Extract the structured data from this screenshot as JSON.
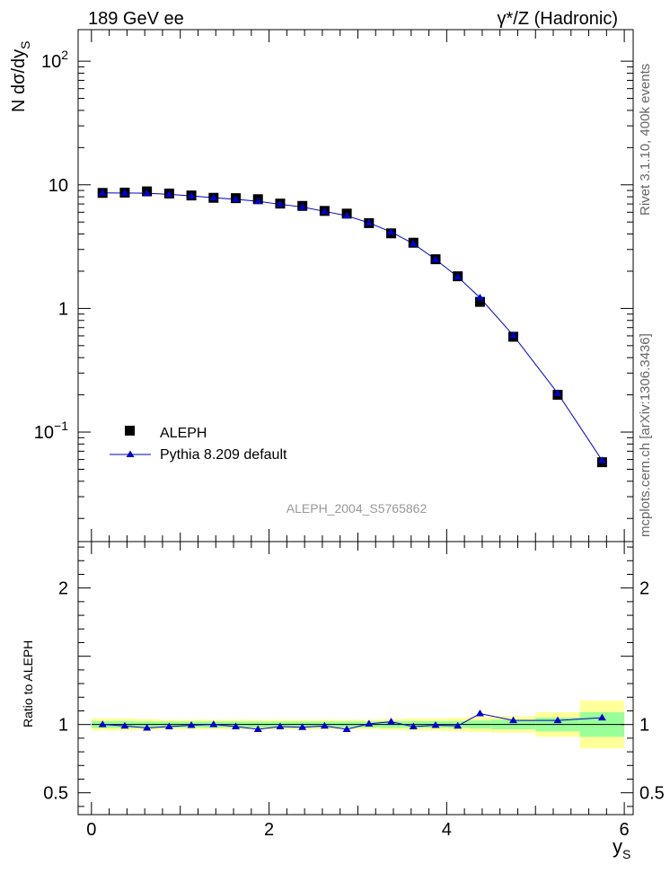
{
  "header": {
    "left_title": "189 GeV ee",
    "right_title": "γ*/Z (Hadronic)"
  },
  "side_labels": {
    "rivet": "Rivet 3.1.10,  400k events",
    "mcplots": "mcplots.cern.ch [arXiv:1306.3436]"
  },
  "watermark": "ALEPH_2004_S5765862",
  "colors": {
    "data": "#000000",
    "mc": "#0000cc",
    "band_inner": "#99ff99",
    "band_outer": "#ffff99"
  },
  "chart_data": [
    {
      "type": "scatter",
      "panel": "main",
      "title": "",
      "xlabel": "y",
      "xlabel_sub": "S",
      "ylabel_main": "N dσ/dy",
      "ylabel_sub": "S",
      "yscale": "log",
      "xlim": [
        -0.15,
        6.1
      ],
      "ylim": [
        0.013,
        180
      ],
      "yticks": [
        {
          "value": 100,
          "base": "10",
          "exp": "2"
        },
        {
          "value": 10,
          "base": "10",
          "exp": ""
        },
        {
          "value": 1,
          "base": "1",
          "exp": ""
        },
        {
          "value": 0.1,
          "base": "10",
          "exp": "−1"
        }
      ],
      "legend": {
        "position": "bottom-left",
        "entries": [
          {
            "label": "ALEPH",
            "marker": "square"
          },
          {
            "label": "Pythia 8.209 default",
            "marker": "triangle-line"
          }
        ]
      },
      "series": [
        {
          "name": "ALEPH",
          "x": [
            0.125,
            0.375,
            0.625,
            0.875,
            1.125,
            1.375,
            1.625,
            1.875,
            2.125,
            2.375,
            2.625,
            2.875,
            3.125,
            3.375,
            3.625,
            3.875,
            4.125,
            4.375,
            4.75,
            5.25,
            5.75
          ],
          "values": [
            8.6,
            8.65,
            8.85,
            8.5,
            8.2,
            7.85,
            7.8,
            7.65,
            7.05,
            6.75,
            6.15,
            5.85,
            4.9,
            4.05,
            3.4,
            2.5,
            1.82,
            1.13,
            0.59,
            0.2,
            0.057
          ]
        },
        {
          "name": "Pythia 8.209 default",
          "x": [
            0.125,
            0.375,
            0.625,
            0.875,
            1.125,
            1.375,
            1.625,
            1.875,
            2.125,
            2.375,
            2.625,
            2.875,
            3.125,
            3.375,
            3.625,
            3.875,
            4.125,
            4.375,
            4.75,
            5.25,
            5.75
          ],
          "values": [
            8.6,
            8.58,
            8.55,
            8.38,
            8.13,
            7.86,
            7.64,
            7.35,
            6.96,
            6.61,
            6.1,
            5.62,
            4.93,
            4.15,
            3.34,
            2.49,
            1.8,
            1.22,
            0.605,
            0.206,
            0.059
          ]
        }
      ]
    },
    {
      "type": "scatter",
      "panel": "ratio",
      "ylabel": "Ratio to ALEPH",
      "xlabel": "y",
      "xlabel_sub": "S",
      "xlim": [
        -0.15,
        6.1
      ],
      "ylim": [
        0.34,
        2.34
      ],
      "yticks": [
        0.5,
        1,
        2
      ],
      "ytick_labels": [
        "0.5",
        "1",
        "2"
      ],
      "xticks": [
        0,
        2,
        4,
        6
      ],
      "xtick_labels": [
        "0",
        "2",
        "4",
        "6"
      ],
      "bands": {
        "bins": [
          [
            0,
            0.25
          ],
          [
            0.25,
            0.5
          ],
          [
            0.5,
            0.75
          ],
          [
            0.75,
            1.0
          ],
          [
            1.0,
            1.25
          ],
          [
            1.25,
            1.5
          ],
          [
            1.5,
            1.75
          ],
          [
            1.75,
            2.0
          ],
          [
            2.0,
            2.25
          ],
          [
            2.25,
            2.5
          ],
          [
            2.5,
            2.75
          ],
          [
            2.75,
            3.0
          ],
          [
            3.0,
            3.25
          ],
          [
            3.25,
            3.5
          ],
          [
            3.5,
            3.75
          ],
          [
            3.75,
            4.0
          ],
          [
            4.0,
            4.25
          ],
          [
            4.25,
            4.5
          ],
          [
            4.5,
            5.0
          ],
          [
            5.0,
            5.5
          ],
          [
            5.5,
            6.0
          ]
        ],
        "inner": [
          0.025,
          0.025,
          0.022,
          0.022,
          0.022,
          0.022,
          0.022,
          0.022,
          0.022,
          0.022,
          0.022,
          0.022,
          0.022,
          0.025,
          0.025,
          0.025,
          0.025,
          0.03,
          0.035,
          0.05,
          0.09
        ],
        "outer": [
          0.045,
          0.045,
          0.04,
          0.035,
          0.035,
          0.035,
          0.035,
          0.035,
          0.035,
          0.035,
          0.035,
          0.035,
          0.035,
          0.04,
          0.045,
          0.045,
          0.05,
          0.055,
          0.06,
          0.09,
          0.175
        ]
      },
      "series": [
        {
          "name": "Pythia 8.209 default",
          "x": [
            0.125,
            0.375,
            0.625,
            0.875,
            1.125,
            1.375,
            1.625,
            1.875,
            2.125,
            2.375,
            2.625,
            2.875,
            3.125,
            3.375,
            3.625,
            3.875,
            4.125,
            4.375,
            4.75,
            5.25,
            5.75
          ],
          "values": [
            1.0,
            0.99,
            0.975,
            0.985,
            0.995,
            1.0,
            0.985,
            0.965,
            0.985,
            0.98,
            0.99,
            0.965,
            1.005,
            1.02,
            0.985,
            0.995,
            0.99,
            1.08,
            1.03,
            1.03,
            1.05
          ]
        }
      ]
    }
  ]
}
